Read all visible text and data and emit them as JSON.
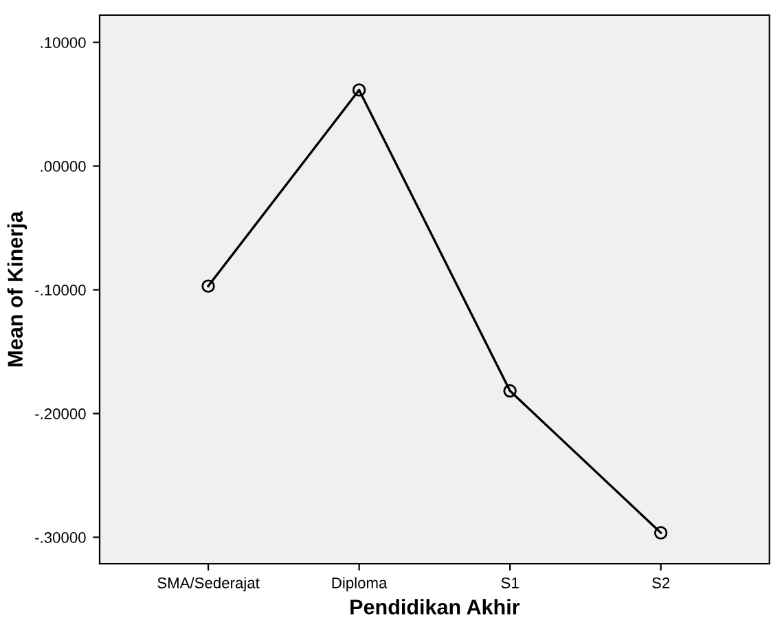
{
  "chart_data": {
    "type": "line",
    "xlabel": "Pendidikan Akhir",
    "ylabel": "Mean of Kinerja",
    "categories": [
      "SMA/Sederajat",
      "Diploma",
      "S1",
      "S2"
    ],
    "series": [
      {
        "color": "#000000",
        "values": [
          -0.097,
          0.0615,
          -0.1817,
          -0.2964
        ]
      }
    ],
    "ylim": [
      -0.3214,
      0.122
    ],
    "yticks": [
      {
        "value": -0.3,
        "label": "-.30000"
      },
      {
        "value": -0.2,
        "label": "-.20000"
      },
      {
        "value": -0.1,
        "label": "-.10000"
      },
      {
        "value": 0,
        "label": ".00000"
      },
      {
        "value": 0.1,
        "label": ".10000"
      }
    ],
    "marker": "circle",
    "line_style": "solid",
    "grid": false,
    "legend": false
  }
}
